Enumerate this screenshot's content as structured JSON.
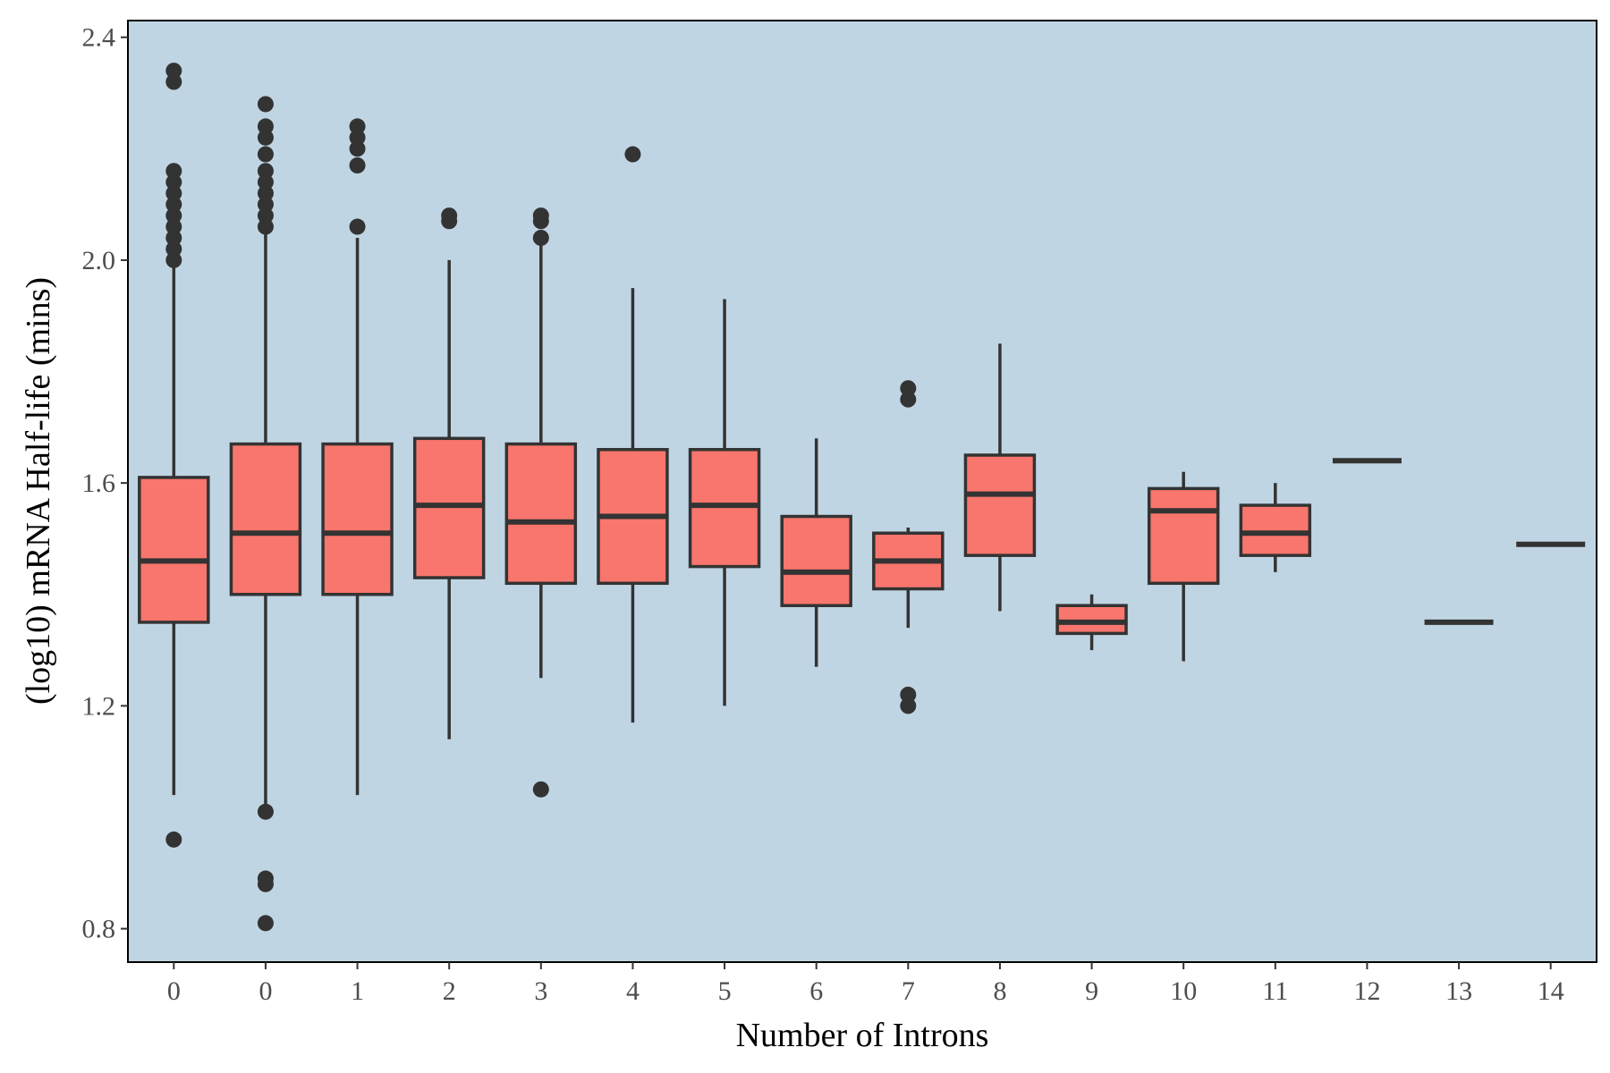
{
  "chart_data": {
    "type": "box",
    "xlabel": "Number of Introns",
    "ylabel": "(log10) mRNA Half-life (mins)",
    "ylim": [
      0.74,
      2.43
    ],
    "yticks": [
      0.8,
      1.2,
      1.6,
      2.0,
      2.4
    ],
    "ytick_labels": [
      "0.8",
      "1.2",
      "1.6",
      "2.0",
      "2.4"
    ],
    "categories": [
      "0",
      "0",
      "1",
      "2",
      "3",
      "4",
      "5",
      "6",
      "7",
      "8",
      "9",
      "10",
      "11",
      "12",
      "13",
      "14"
    ],
    "boxes": [
      {
        "category": "0",
        "whisker_low": 1.04,
        "q1": 1.35,
        "median": 1.46,
        "q3": 1.61,
        "whisker_high": 1.99,
        "outliers": [
          0.96,
          2.0,
          2.02,
          2.04,
          2.06,
          2.08,
          2.1,
          2.12,
          2.14,
          2.16,
          2.32,
          2.34
        ]
      },
      {
        "category": "0",
        "whisker_low": 1.02,
        "q1": 1.4,
        "median": 1.51,
        "q3": 1.67,
        "whisker_high": 2.05,
        "outliers": [
          0.81,
          0.88,
          0.89,
          1.01,
          2.06,
          2.08,
          2.1,
          2.12,
          2.14,
          2.16,
          2.19,
          2.22,
          2.24,
          2.28
        ]
      },
      {
        "category": "1",
        "whisker_low": 1.04,
        "q1": 1.4,
        "median": 1.51,
        "q3": 1.67,
        "whisker_high": 2.04,
        "outliers": [
          2.06,
          2.17,
          2.2,
          2.22,
          2.24
        ]
      },
      {
        "category": "2",
        "whisker_low": 1.14,
        "q1": 1.43,
        "median": 1.56,
        "q3": 1.68,
        "whisker_high": 2.0,
        "outliers": [
          2.07,
          2.08
        ]
      },
      {
        "category": "3",
        "whisker_low": 1.25,
        "q1": 1.42,
        "median": 1.53,
        "q3": 1.67,
        "whisker_high": 2.03,
        "outliers": [
          1.05,
          2.04,
          2.07,
          2.08
        ]
      },
      {
        "category": "4",
        "whisker_low": 1.17,
        "q1": 1.42,
        "median": 1.54,
        "q3": 1.66,
        "whisker_high": 1.95,
        "outliers": [
          2.19
        ]
      },
      {
        "category": "5",
        "whisker_low": 1.2,
        "q1": 1.45,
        "median": 1.56,
        "q3": 1.66,
        "whisker_high": 1.93,
        "outliers": []
      },
      {
        "category": "6",
        "whisker_low": 1.27,
        "q1": 1.38,
        "median": 1.44,
        "q3": 1.54,
        "whisker_high": 1.68,
        "outliers": []
      },
      {
        "category": "7",
        "whisker_low": 1.34,
        "q1": 1.41,
        "median": 1.46,
        "q3": 1.51,
        "whisker_high": 1.52,
        "outliers": [
          1.2,
          1.22,
          1.75,
          1.77
        ]
      },
      {
        "category": "8",
        "whisker_low": 1.37,
        "q1": 1.47,
        "median": 1.58,
        "q3": 1.65,
        "whisker_high": 1.85,
        "outliers": []
      },
      {
        "category": "9",
        "whisker_low": 1.3,
        "q1": 1.33,
        "median": 1.35,
        "q3": 1.38,
        "whisker_high": 1.4,
        "outliers": []
      },
      {
        "category": "10",
        "whisker_low": 1.28,
        "q1": 1.42,
        "median": 1.55,
        "q3": 1.59,
        "whisker_high": 1.62,
        "outliers": []
      },
      {
        "category": "11",
        "whisker_low": 1.44,
        "q1": 1.47,
        "median": 1.51,
        "q3": 1.56,
        "whisker_high": 1.6,
        "outliers": []
      },
      {
        "category": "12",
        "whisker_low": 1.64,
        "q1": 1.64,
        "median": 1.64,
        "q3": 1.64,
        "whisker_high": 1.64,
        "outliers": []
      },
      {
        "category": "13",
        "whisker_low": 1.35,
        "q1": 1.35,
        "median": 1.35,
        "q3": 1.35,
        "whisker_high": 1.35,
        "outliers": []
      },
      {
        "category": "14",
        "whisker_low": 1.49,
        "q1": 1.49,
        "median": 1.49,
        "q3": 1.49,
        "whisker_high": 1.49,
        "outliers": []
      }
    ],
    "grid": false,
    "legend": "none",
    "colors": {
      "box_fill": "#f8766d",
      "line": "#333333",
      "panel_background": "#c0d5e3",
      "panel_border": "#000000"
    }
  }
}
